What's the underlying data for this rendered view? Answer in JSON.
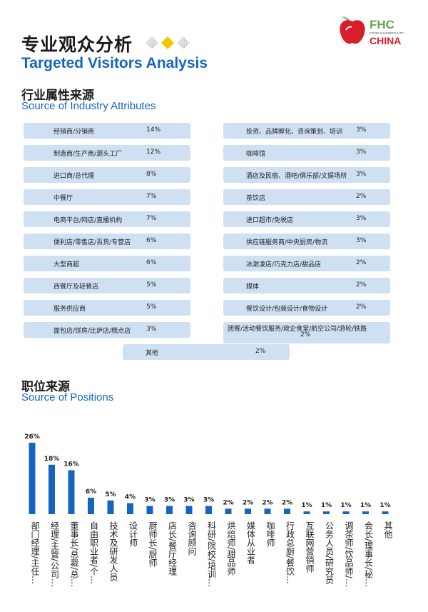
{
  "header": {
    "title_zh": "专业观众分析",
    "title_en": "Targeted Visitors Analysis",
    "logo": {
      "brand": "FHC",
      "tagline": "FOOD & HOSPITALITY",
      "country": "CHINA"
    },
    "colors": {
      "brand_blue": "#1565c0",
      "accent_yellow": "#f5c400",
      "logo_red": "#d81e2b",
      "logo_green": "#6aa84f"
    }
  },
  "industry": {
    "title_zh": "行业属性来源",
    "title_en": "Source of Industry Attributes",
    "left": [
      {
        "label": "经销商/分销商",
        "pct": "14%"
      },
      {
        "label": "制造商/生产商/源头工厂",
        "pct": "12%"
      },
      {
        "label": "进口商/总代理",
        "pct": "8%"
      },
      {
        "label": "中餐厅",
        "pct": "7%"
      },
      {
        "label": "电商平台/网店/直播机构",
        "pct": "7%"
      },
      {
        "label": "便利店/零售店/百货/专营店",
        "pct": "6%"
      },
      {
        "label": "大型商超",
        "pct": "6%"
      },
      {
        "label": "西餐厅及轻餐店",
        "pct": "5%"
      },
      {
        "label": "服务供应商",
        "pct": "5%"
      },
      {
        "label": "面包店/饼房/比萨店/糕点店",
        "pct": "3%"
      }
    ],
    "right": [
      {
        "label": "投资、品牌孵化、咨询策划、培训",
        "pct": "3%"
      },
      {
        "label": "咖啡馆",
        "pct": "3%"
      },
      {
        "label": "酒店及民宿、酒吧/俱乐部/文娱场所",
        "pct": "3%"
      },
      {
        "label": "茶饮店",
        "pct": "2%"
      },
      {
        "label": "进口超市/免税店",
        "pct": "3%"
      },
      {
        "label": "供应链服务商/中央厨房/物流",
        "pct": "3%"
      },
      {
        "label": "冰激凌店/巧克力店/甜品店",
        "pct": "2%"
      },
      {
        "label": "媒体",
        "pct": "2%"
      },
      {
        "label": "餐饮设计/包装设计/食物设计",
        "pct": "2%"
      },
      {
        "label": "团餐/活动餐饮服务/政企食堂/航空公司/游轮/铁路",
        "pct": "2%"
      }
    ],
    "other": {
      "label": "其他",
      "pct": "2%"
    }
  },
  "positions": {
    "title_zh": "职位来源",
    "title_en": "Source of Positions"
  },
  "chart_data": {
    "type": "bar",
    "categories": [
      "部门经理/主任…",
      "经理/主管/公司…",
      "董事长/总裁/总…",
      "自由职业者/个…",
      "技术及研发人员",
      "设计师",
      "厨师长/厨师",
      "店长/餐厅经理",
      "咨询顾问",
      "科研/院校/培训…",
      "烘焙师/甜品师",
      "媒体从业者",
      "咖啡师",
      "行政总厨/餐饮…",
      "互联网营销师",
      "公务人员/研究员",
      "调茶师/饮品师/…",
      "会长/理事长/秘…",
      "其他"
    ],
    "values": [
      26,
      18,
      16,
      6,
      5,
      4,
      3,
      3,
      3,
      3,
      2,
      2,
      2,
      2,
      1,
      1,
      1,
      1,
      1
    ],
    "value_labels": [
      "26%",
      "18%",
      "16%",
      "6%",
      "5%",
      "4%",
      "3%",
      "3%",
      "3%",
      "3%",
      "2%",
      "2%",
      "2%",
      "2%",
      "1%",
      "1%",
      "1%",
      "1%",
      "1%"
    ],
    "ylim": [
      0,
      26
    ],
    "bar_color": "#1565c0",
    "grid": false,
    "legend": "none"
  }
}
